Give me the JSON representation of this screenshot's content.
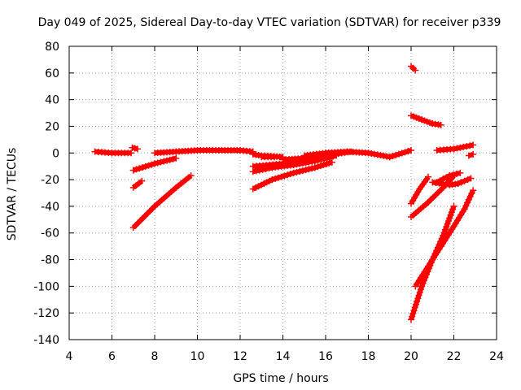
{
  "chart_data": {
    "type": "scatter",
    "title": "Day 049 of 2025, Sidereal Day-to-day VTEC variation (SDTVAR) for receiver p339",
    "xlabel": "GPS time / hours",
    "ylabel": "SDTVAR / TECUs",
    "xlim": [
      4,
      24
    ],
    "ylim": [
      -140,
      80
    ],
    "xticks": [
      4,
      6,
      8,
      10,
      12,
      14,
      16,
      18,
      20,
      22,
      24
    ],
    "yticks": [
      80,
      60,
      40,
      20,
      0,
      -20,
      -40,
      -60,
      -80,
      -100,
      -120,
      -140
    ],
    "grid": true,
    "marker": "plus",
    "series_color": "#ff0000",
    "segments": [
      {
        "name": "arc-1",
        "x": [
          5.2,
          6.0,
          6.9
        ],
        "y": [
          1,
          0,
          0
        ]
      },
      {
        "name": "arc-2",
        "x": [
          6.95,
          7.2
        ],
        "y": [
          4,
          3
        ]
      },
      {
        "name": "arc-3",
        "x": [
          7.0,
          8.0,
          9.0
        ],
        "y": [
          -13,
          -8,
          -4
        ]
      },
      {
        "name": "arc-4",
        "x": [
          7.0,
          7.4
        ],
        "y": [
          -26,
          -21
        ]
      },
      {
        "name": "arc-5",
        "x": [
          7.0,
          8.0,
          9.0,
          9.7
        ],
        "y": [
          -56,
          -40,
          -26,
          -17
        ]
      },
      {
        "name": "arc-6",
        "x": [
          8.0,
          9.0,
          10.0,
          11.0,
          12.0,
          12.6
        ],
        "y": [
          0,
          1,
          2,
          2,
          2,
          1
        ]
      },
      {
        "name": "arc-7",
        "x": [
          12.6,
          13.0,
          14.0
        ],
        "y": [
          -1,
          -2,
          -3
        ]
      },
      {
        "name": "arc-8",
        "x": [
          13.0,
          13.6
        ],
        "y": [
          -3,
          -3
        ]
      },
      {
        "name": "arc-9",
        "x": [
          12.6,
          13.5,
          14.5,
          15.5,
          16.5
        ],
        "y": [
          -14,
          -11,
          -9,
          -6,
          -2
        ]
      },
      {
        "name": "arc-10",
        "x": [
          12.6,
          14.0,
          15.0,
          16.2
        ],
        "y": [
          -10,
          -8,
          -5,
          -1
        ]
      },
      {
        "name": "arc-11",
        "x": [
          12.6,
          13.5,
          14.5,
          15.5,
          16.3
        ],
        "y": [
          -27,
          -20,
          -15,
          -11,
          -7
        ]
      },
      {
        "name": "arc-12",
        "x": [
          14.0,
          15.0,
          16.0,
          17.2
        ],
        "y": [
          -5,
          -4,
          -2,
          1
        ]
      },
      {
        "name": "arc-13",
        "x": [
          15.0,
          16.0,
          17.0,
          18.0,
          19.0,
          20.0
        ],
        "y": [
          -2,
          0,
          1,
          0,
          -3,
          2
        ]
      },
      {
        "name": "arc-14",
        "x": [
          20.0,
          20.2
        ],
        "y": [
          65,
          62
        ]
      },
      {
        "name": "arc-15",
        "x": [
          20.0,
          20.5,
          21.0,
          21.4
        ],
        "y": [
          28,
          25,
          22,
          21
        ]
      },
      {
        "name": "arc-16",
        "x": [
          21.2,
          22.0,
          22.9
        ],
        "y": [
          2,
          3,
          6
        ]
      },
      {
        "name": "arc-17",
        "x": [
          22.7,
          22.9
        ],
        "y": [
          -2,
          -1
        ]
      },
      {
        "name": "arc-18",
        "x": [
          20.0,
          20.4,
          20.8
        ],
        "y": [
          -38,
          -27,
          -18
        ]
      },
      {
        "name": "arc-19",
        "x": [
          20.0,
          20.8,
          21.5,
          22.0
        ],
        "y": [
          -48,
          -37,
          -26,
          -17
        ]
      },
      {
        "name": "arc-20",
        "x": [
          21.0,
          21.8,
          22.2,
          22.8
        ],
        "y": [
          -22,
          -24,
          -23,
          -19
        ]
      },
      {
        "name": "arc-21",
        "x": [
          21.2,
          21.8,
          22.3
        ],
        "y": [
          -22,
          -17,
          -15
        ]
      },
      {
        "name": "arc-22",
        "x": [
          20.0,
          20.5,
          21.0,
          21.5,
          22.0
        ],
        "y": [
          -125,
          -100,
          -80,
          -62,
          -40
        ]
      },
      {
        "name": "arc-23",
        "x": [
          20.2,
          20.8,
          21.4,
          22.0,
          22.5,
          22.9
        ],
        "y": [
          -100,
          -85,
          -70,
          -55,
          -42,
          -28
        ]
      }
    ]
  }
}
